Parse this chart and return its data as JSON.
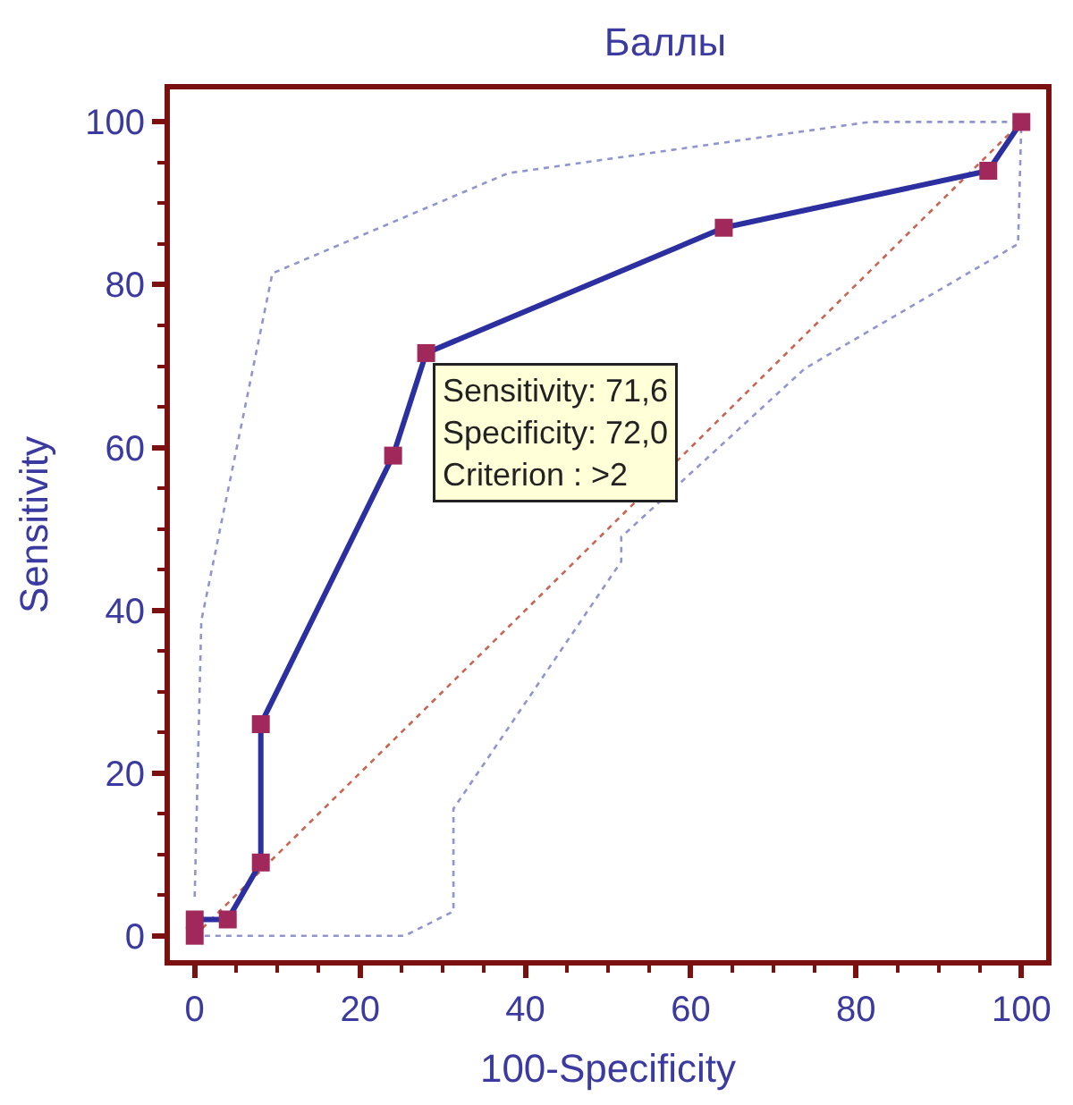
{
  "chart_data": {
    "type": "line",
    "title": "Баллы",
    "xlabel": "100-Specificity",
    "ylabel": "Sensitivity",
    "xlim": [
      -3,
      103
    ],
    "ylim": [
      -3,
      104
    ],
    "xticks": [
      0,
      20,
      40,
      60,
      80,
      100
    ],
    "yticks": [
      0,
      20,
      40,
      60,
      80,
      100
    ],
    "series": [
      {
        "x": [
          1.2,
          25.4,
          31.3,
          31.3,
          51.6,
          51.6,
          73.8,
          99.6,
          100
        ],
        "values": [
          0,
          0,
          3,
          15.6,
          46,
          49,
          69.7,
          85,
          100
        ],
        "color": "#8f95d0",
        "line_style": "dotted"
      },
      {
        "x": [
          0,
          0.8,
          9.4,
          37.9,
          81.6,
          100
        ],
        "values": [
          4.8,
          38.7,
          81.4,
          93.7,
          100,
          100
        ],
        "color": "#8f95d0",
        "line_style": "dotted"
      },
      {
        "x": [
          0,
          100
        ],
        "values": [
          0,
          100
        ],
        "color": "#c8644f",
        "line_style": "dotted"
      },
      {
        "x": [
          0,
          0,
          4,
          8,
          8,
          24,
          28,
          64,
          96,
          100
        ],
        "values": [
          0,
          2,
          2,
          9,
          26,
          59,
          71.6,
          87,
          94,
          100
        ],
        "color": "#2b2fa0",
        "colors": [
          "#a0285a",
          "#a0285a",
          "#a0285a",
          "#a0285a",
          "#a0285a",
          "#a0285a",
          "#a0285a",
          "#a0285a",
          "#a0285a",
          "#a0285a"
        ],
        "line_style": "solid",
        "marker": "square"
      }
    ],
    "annotations": [
      {
        "text": "Sensitivity: 71,6\nSpecificity: 72,0\nCriterion : >2",
        "x": 28,
        "y": 71.6
      }
    ]
  }
}
